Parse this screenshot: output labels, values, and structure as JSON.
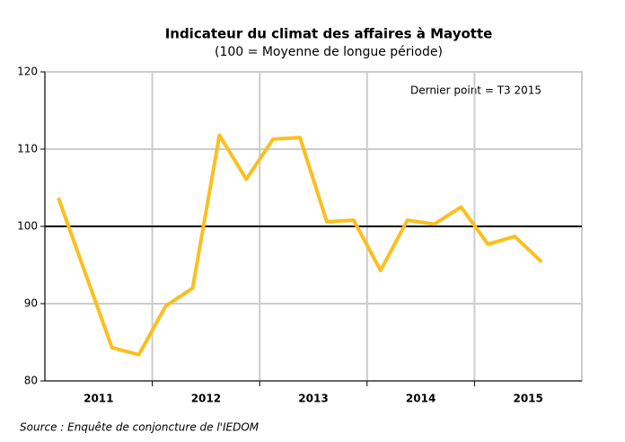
{
  "chart_data": {
    "type": "line",
    "title": "Indicateur du climat des affaires à Mayotte",
    "subtitle": "(100 = Moyenne de longue période)",
    "annotation": "Dernier point = T3 2015",
    "source": "Source : Enquête de conjoncture de l'IEDOM",
    "x": [
      2011.125,
      2011.375,
      2011.625,
      2011.875,
      2012.125,
      2012.375,
      2012.625,
      2012.875,
      2013.125,
      2013.375,
      2013.625,
      2013.875,
      2014.125,
      2014.375,
      2014.625,
      2014.875,
      2015.125,
      2015.375,
      2015.625
    ],
    "series": [
      {
        "color": "#fbbf1e",
        "values": [
          103.7,
          94,
          84.3,
          83.4,
          89.7,
          92,
          111.8,
          106.1,
          111.3,
          111.5,
          100.6,
          100.8,
          94.3,
          100.8,
          100.3,
          102.5,
          97.7,
          98.7,
          95.4
        ]
      }
    ],
    "xlim": [
      2011,
      2016
    ],
    "xticks": [
      {
        "value": 2011.5,
        "label": "2011"
      },
      {
        "value": 2012.5,
        "label": "2012"
      },
      {
        "value": 2013.5,
        "label": "2013"
      },
      {
        "value": 2014.5,
        "label": "2014"
      },
      {
        "value": 2015.5,
        "label": "2015"
      }
    ],
    "xgrid": [
      2012,
      2013,
      2014,
      2015
    ],
    "ylim": [
      80,
      120
    ],
    "yticks": [
      80,
      90,
      100,
      110,
      120
    ],
    "reference_line": 100,
    "grid": true
  }
}
